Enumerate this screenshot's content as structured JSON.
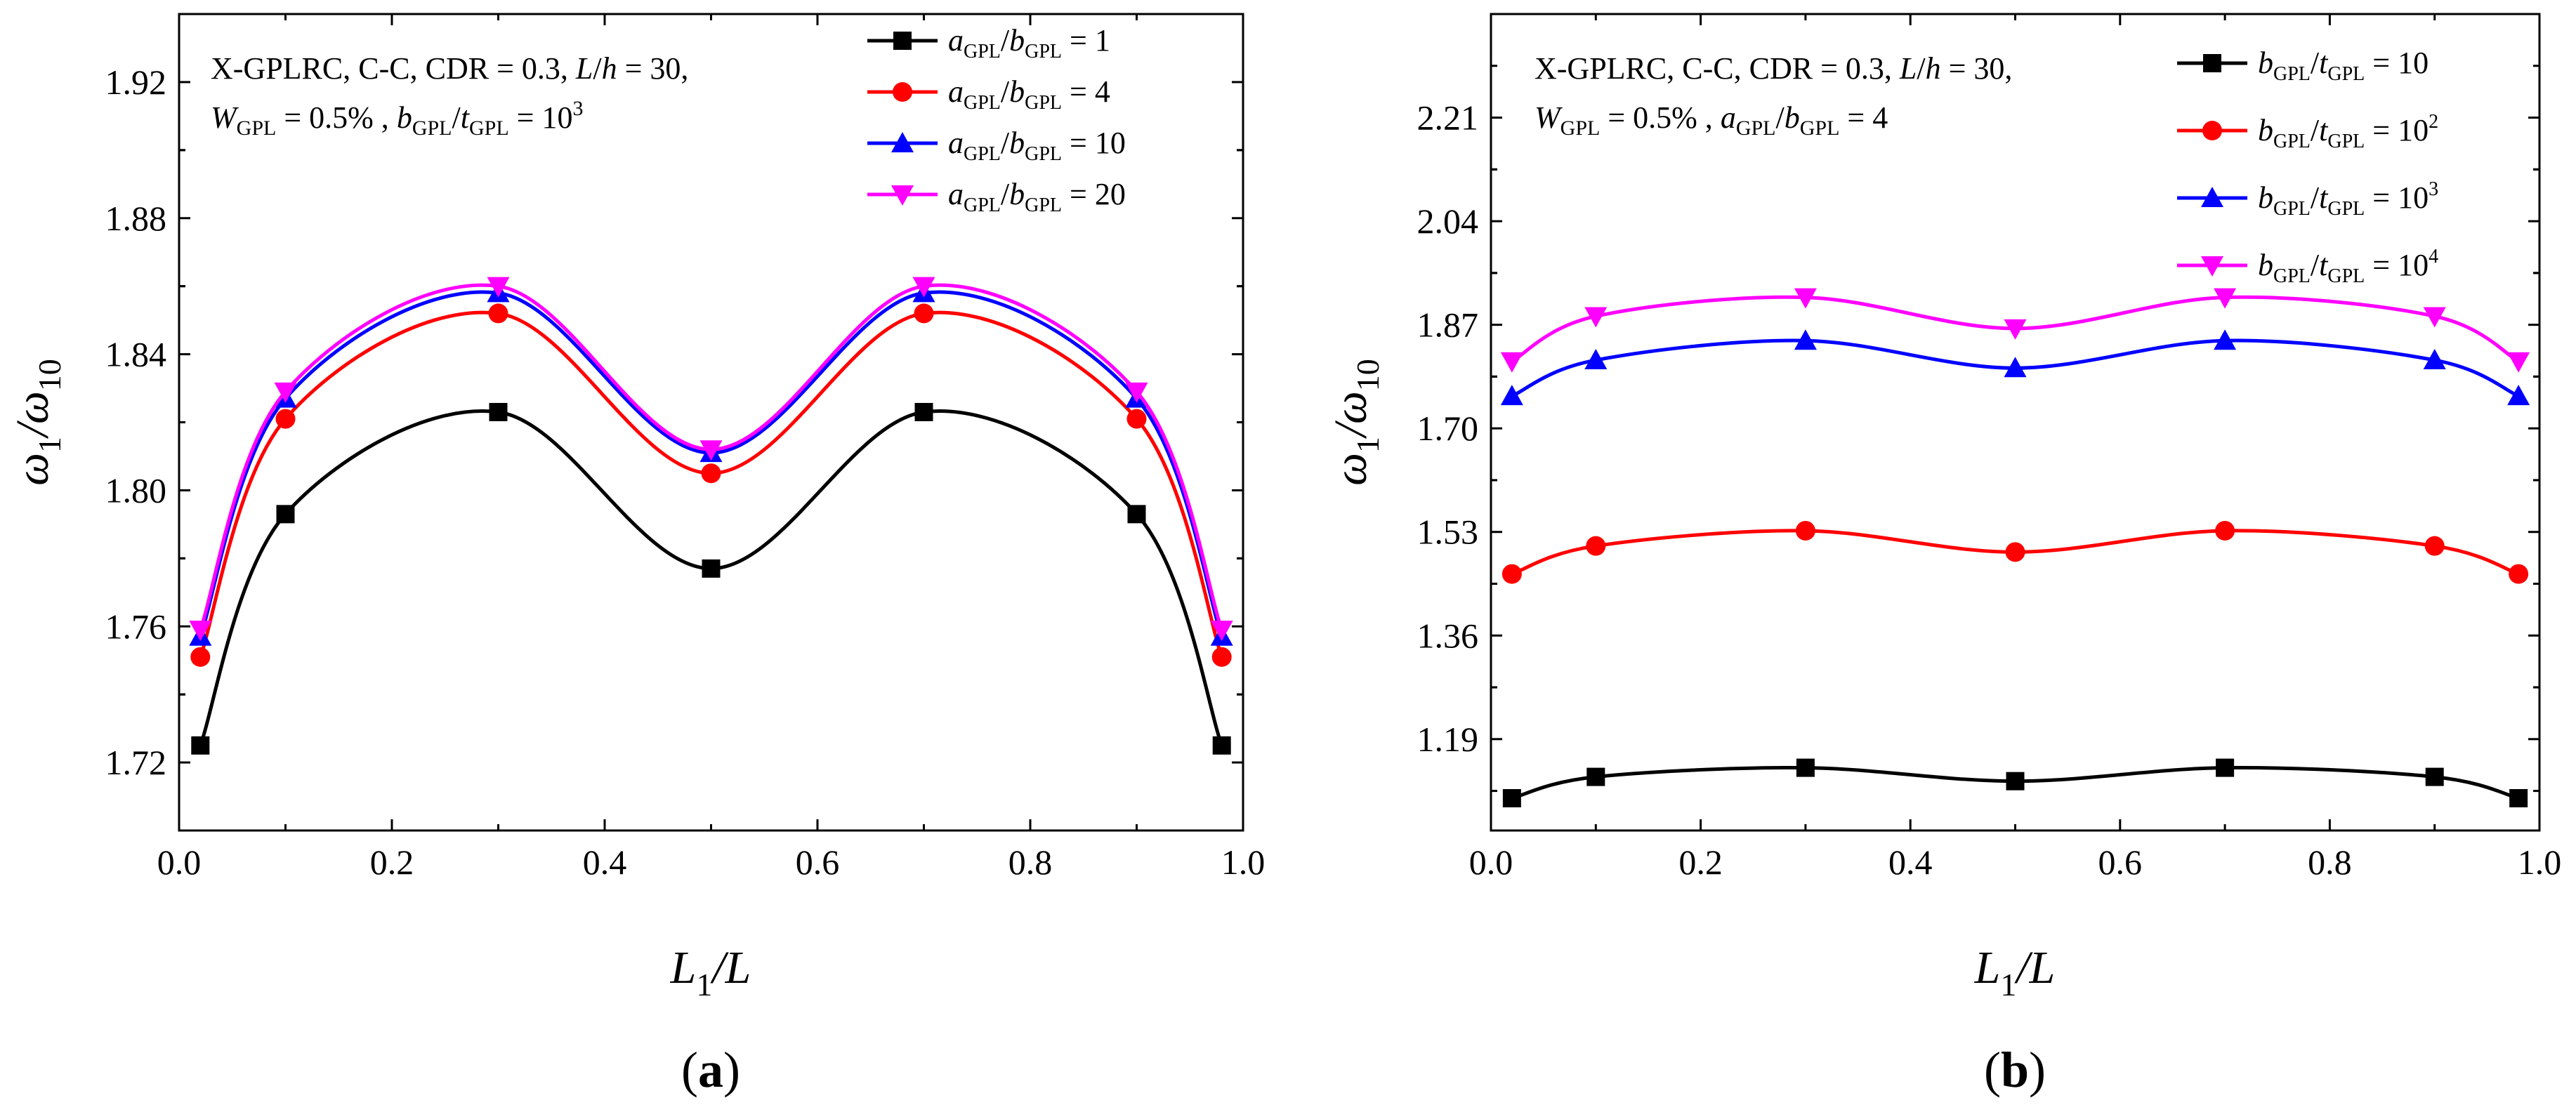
{
  "chart_data": [
    {
      "panel": "a",
      "type": "line",
      "caption": {
        "open": "(",
        "letter": "a",
        "close": ")"
      },
      "xlabel": {
        "main": "L",
        "sub": "1",
        "rest": "/L"
      },
      "ylabel": {
        "main": "ω",
        "sub1": "1",
        "slash": "/ω",
        "sub2": "10"
      },
      "xlim": [
        0.0,
        1.0
      ],
      "ylim": [
        1.7,
        1.94
      ],
      "xticks": [
        "0.0",
        "0.2",
        "0.4",
        "0.6",
        "0.8",
        "1.0"
      ],
      "yticks": [
        "1.72",
        "1.76",
        "1.80",
        "1.84",
        "1.88",
        "1.92"
      ],
      "annotation": {
        "line1": "X-GPLRC, C-C, CDR = 0.3, ",
        "line1_L": "L",
        "line1_slash": "/",
        "line1_h": "h",
        "line1_end": " = 30,",
        "line2_W": "W",
        "line2_Wsub": "GPL",
        "line2_mid": " = 0.5% ,  ",
        "line2_b": "b",
        "line2_bsub": "GPL",
        "line2_slash": "/",
        "line2_t": "t",
        "line2_tsub": "GPL",
        "line2_eq": " = 10",
        "line2_sup": "3"
      },
      "x": [
        0.02,
        0.1,
        0.3,
        0.5,
        0.7,
        0.9,
        0.98
      ],
      "series": [
        {
          "name": "a_GPL/b_GPL = 1",
          "var": "a",
          "den": "b",
          "eq": " = ",
          "val": "1",
          "sup": "",
          "color": "#000000",
          "marker": "square",
          "values": [
            1.725,
            1.793,
            1.823,
            1.777,
            1.823,
            1.793,
            1.725
          ]
        },
        {
          "name": "a_GPL/b_GPL = 4",
          "var": "a",
          "den": "b",
          "eq": " = ",
          "val": "4",
          "sup": "",
          "color": "#ff0000",
          "marker": "circle",
          "values": [
            1.751,
            1.821,
            1.852,
            1.805,
            1.852,
            1.821,
            1.751
          ]
        },
        {
          "name": "a_GPL/b_GPL = 10",
          "var": "a",
          "den": "b",
          "eq": " = ",
          "val": "10",
          "sup": "",
          "color": "#0000ff",
          "marker": "triangle-up",
          "values": [
            1.757,
            1.827,
            1.858,
            1.811,
            1.858,
            1.827,
            1.757
          ]
        },
        {
          "name": "a_GPL/b_GPL = 20",
          "var": "a",
          "den": "b",
          "eq": " = ",
          "val": "20",
          "sup": "",
          "color": "#ff00ff",
          "marker": "triangle-down",
          "values": [
            1.759,
            1.829,
            1.86,
            1.812,
            1.86,
            1.829,
            1.759
          ]
        }
      ]
    },
    {
      "panel": "b",
      "type": "line",
      "caption": {
        "open": "(",
        "letter": "b",
        "close": ")"
      },
      "xlabel": {
        "main": "L",
        "sub": "1",
        "rest": "/L"
      },
      "ylabel": {
        "main": "ω",
        "sub1": "1",
        "slash": "/ω",
        "sub2": "10"
      },
      "xlim": [
        0.0,
        1.0
      ],
      "ylim": [
        1.04,
        2.38
      ],
      "xticks": [
        "0.0",
        "0.2",
        "0.4",
        "0.6",
        "0.8",
        "1.0"
      ],
      "yticks": [
        "1.19",
        "1.36",
        "1.53",
        "1.70",
        "1.87",
        "2.04",
        "2.21"
      ],
      "annotation": {
        "line1": "X-GPLRC, C-C, CDR = 0.3, ",
        "line1_L": "L",
        "line1_slash": "/",
        "line1_h": "h",
        "line1_end": " = 30,",
        "line2_W": "W",
        "line2_Wsub": "GPL",
        "line2_mid": " = 0.5% ,  ",
        "line2_b": "a",
        "line2_bsub": "GPL",
        "line2_slash": "/",
        "line2_t": "b",
        "line2_tsub": "GPL",
        "line2_eq": " = 4",
        "line2_sup": ""
      },
      "x": [
        0.02,
        0.1,
        0.3,
        0.5,
        0.7,
        0.9,
        0.98
      ],
      "series": [
        {
          "name": "b_GPL/t_GPL = 10",
          "var": "b",
          "den": "t",
          "eq": " = ",
          "val": "10",
          "sup": "",
          "color": "#000000",
          "marker": "square",
          "values": [
            1.093,
            1.128,
            1.143,
            1.121,
            1.143,
            1.128,
            1.093
          ]
        },
        {
          "name": "b_GPL/t_GPL = 10^2",
          "var": "b",
          "den": "t",
          "eq": " = ",
          "val": "10",
          "sup": "2",
          "color": "#ff0000",
          "marker": "circle",
          "values": [
            1.461,
            1.507,
            1.532,
            1.497,
            1.532,
            1.507,
            1.461
          ]
        },
        {
          "name": "b_GPL/t_GPL = 10^3",
          "var": "b",
          "den": "t",
          "eq": " = ",
          "val": "10",
          "sup": "3",
          "color": "#0000ff",
          "marker": "triangle-up",
          "values": [
            1.753,
            1.812,
            1.844,
            1.799,
            1.844,
            1.812,
            1.753
          ]
        },
        {
          "name": "b_GPL/t_GPL = 10^4",
          "var": "b",
          "den": "t",
          "eq": " = ",
          "val": "10",
          "sup": "4",
          "color": "#ff00ff",
          "marker": "triangle-down",
          "values": [
            1.81,
            1.884,
            1.915,
            1.864,
            1.915,
            1.884,
            1.81
          ]
        }
      ]
    }
  ]
}
